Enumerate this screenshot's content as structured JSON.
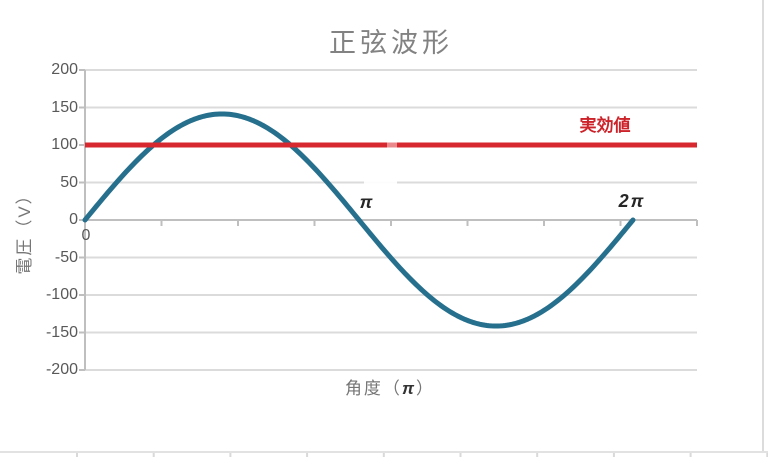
{
  "chart_data": {
    "type": "line",
    "title": "正弦波形",
    "y_axis": {
      "title": "電圧（V）",
      "ticks": [
        200,
        150,
        100,
        50,
        0,
        -50,
        -100,
        -150,
        -200
      ],
      "min": -200,
      "max": 200
    },
    "x_axis": {
      "title_prefix": "角度（",
      "title_pi": "π",
      "title_suffix": "）",
      "origin_label": "0",
      "pi_label": "π",
      "two_pi_label": "2π",
      "unit": "radians (π)",
      "x_tick_interval_count": 8
    },
    "series": [
      {
        "name": "sine-voltage",
        "type": "sine",
        "amplitude_v": 141.4,
        "x_start_pi": 0,
        "x_end_pi": 2,
        "color": "#26708E",
        "stroke_width": 5
      },
      {
        "name": "rms-value",
        "type": "constant",
        "value_v": 100,
        "label": "実効値",
        "color": "#D7282F",
        "stroke_width": 5
      }
    ],
    "grid": true,
    "grid_color": "#DBDBDB",
    "axis_color": "#BFBFBF",
    "tick_label_color": "#595959",
    "title_color": "#828282",
    "legend_position": "none"
  }
}
